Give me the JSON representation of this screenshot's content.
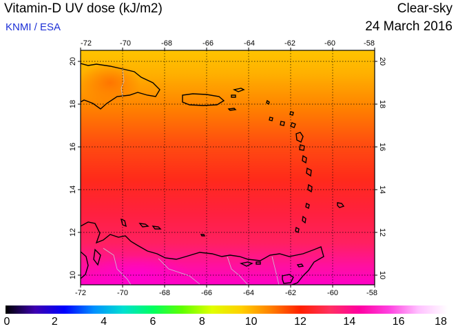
{
  "header": {
    "title": "Vitamin-D UV dose (kJ/m2)",
    "credit": "KNMI / ESA",
    "mode": "Clear-sky",
    "date": "24 March 2016"
  },
  "map": {
    "lon_range": [
      -72,
      -58
    ],
    "lat_range": [
      9.5,
      20.5
    ],
    "lon_ticks": [
      "-72",
      "-70",
      "-68",
      "-66",
      "-64",
      "-62",
      "-60",
      "-58"
    ],
    "lat_ticks": [
      "20",
      "18",
      "16",
      "14",
      "12",
      "10"
    ],
    "grid": true
  },
  "colorbar": {
    "labels": [
      "0",
      "2",
      "4",
      "6",
      "8",
      "10",
      "12",
      "14",
      "16",
      "18"
    ],
    "range": [
      0,
      18
    ],
    "colors": [
      "#000000",
      "#3d00b0",
      "#0000ff",
      "#0090ff",
      "#00e0d0",
      "#00ff60",
      "#60ff00",
      "#e0ff00",
      "#ffd000",
      "#ff8000",
      "#ff2000",
      "#ff3060",
      "#ff00a0",
      "#ff40e0",
      "#ffc0ff",
      "#ffffff"
    ]
  }
}
